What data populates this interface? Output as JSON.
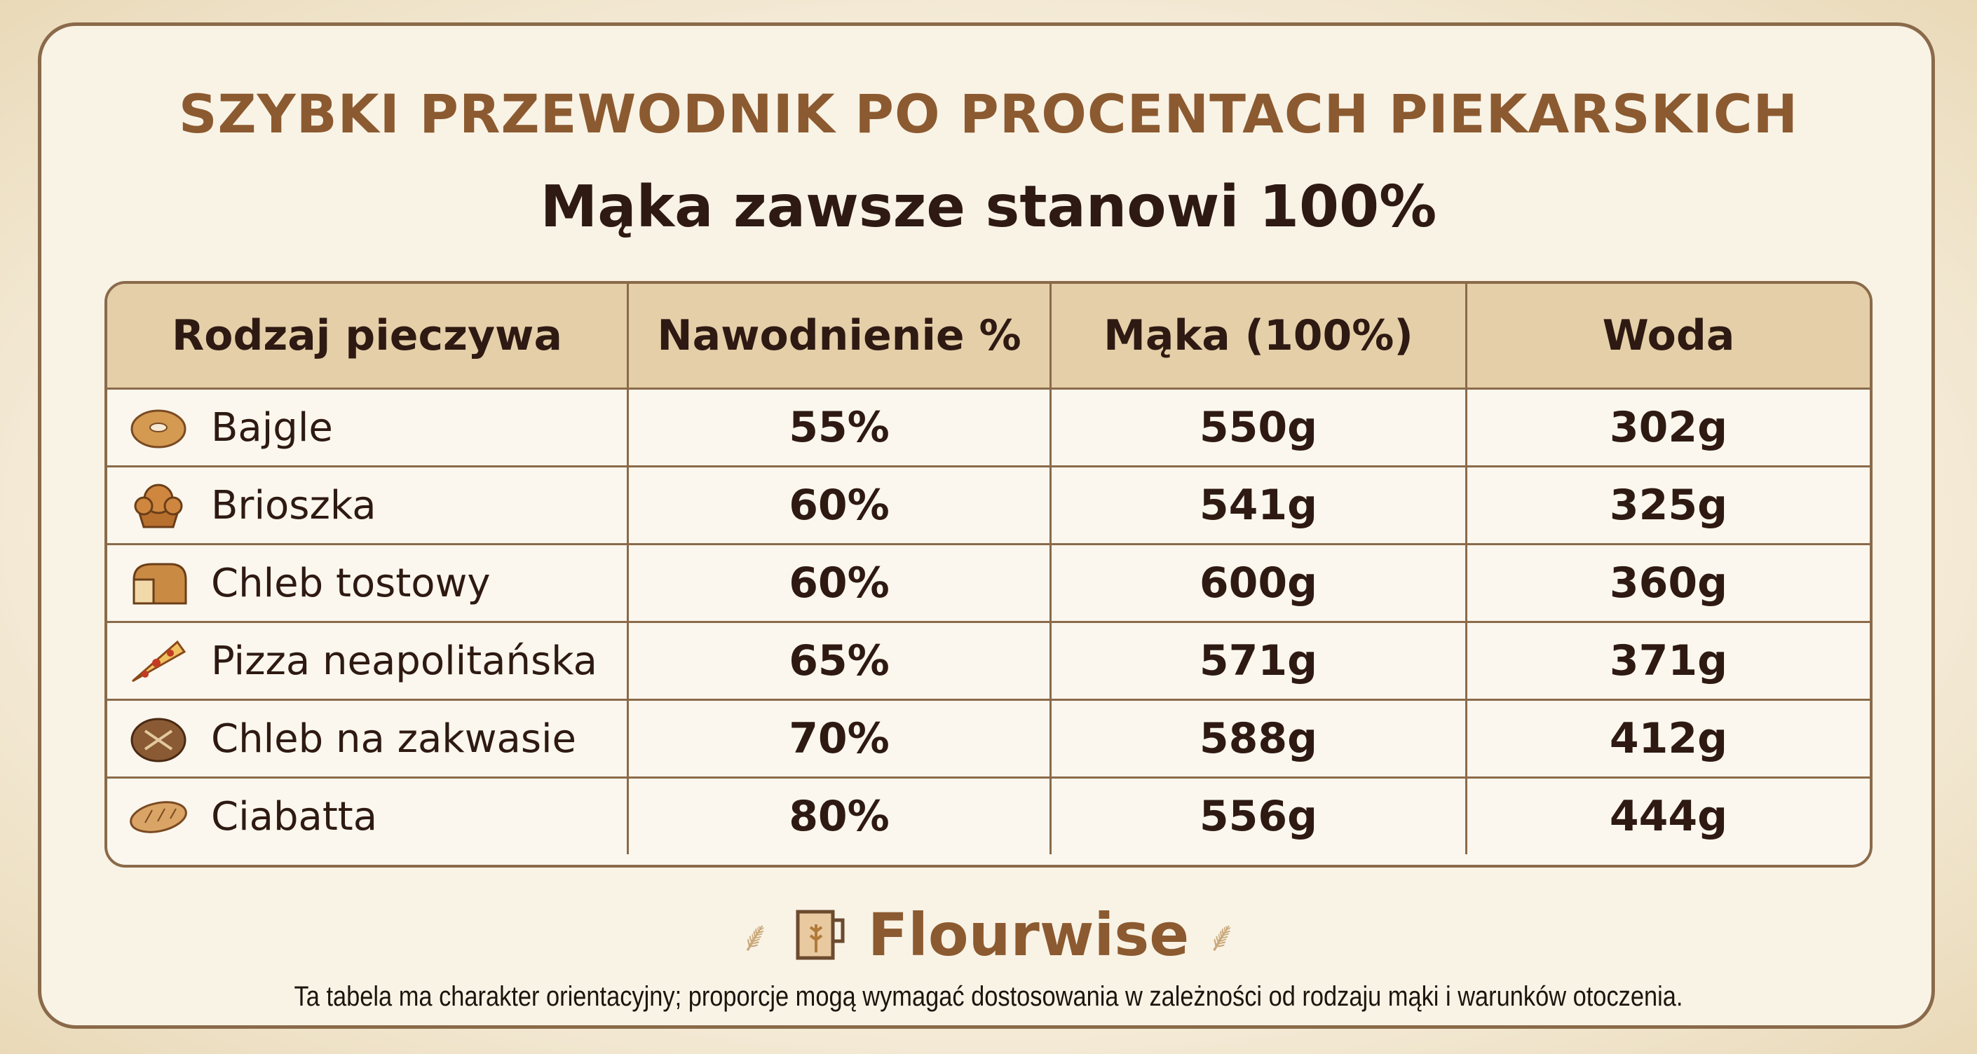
{
  "title": "SZYBKI PRZEWODNIK PO PROCENTACH PIEKARSKICH",
  "subtitle": "Mąka zawsze stanowi 100%",
  "table": {
    "headers": [
      "Rodzaj pieczywa",
      "Nawodnienie %",
      "Mąka (100%)",
      "Woda"
    ],
    "rows": [
      {
        "icon": "bagel-icon",
        "name": "Bajgle",
        "hydration": "55%",
        "flour": "550g",
        "water": "302g"
      },
      {
        "icon": "brioche-icon",
        "name": "Brioszka",
        "hydration": "60%",
        "flour": "541g",
        "water": "325g"
      },
      {
        "icon": "toast-bread-icon",
        "name": "Chleb tostowy",
        "hydration": "60%",
        "flour": "600g",
        "water": "360g"
      },
      {
        "icon": "pizza-icon",
        "name": "Pizza neapolitańska",
        "hydration": "65%",
        "flour": "571g",
        "water": "371g"
      },
      {
        "icon": "sourdough-icon",
        "name": "Chleb na zakwasie",
        "hydration": "70%",
        "flour": "588g",
        "water": "412g"
      },
      {
        "icon": "ciabatta-icon",
        "name": "Ciabatta",
        "hydration": "80%",
        "flour": "556g",
        "water": "444g"
      }
    ]
  },
  "brand": "Flourwise",
  "footer": "Ta tabela ma charakter orientacyjny; proporcje mogą wymagać dostosowania w zależności od rodzaju mąki i warunków otoczenia.",
  "colors": {
    "title": "#8c5a30",
    "header_bg": "#e5cfa9",
    "border": "#8a6a4a",
    "text": "#2e1a12"
  }
}
